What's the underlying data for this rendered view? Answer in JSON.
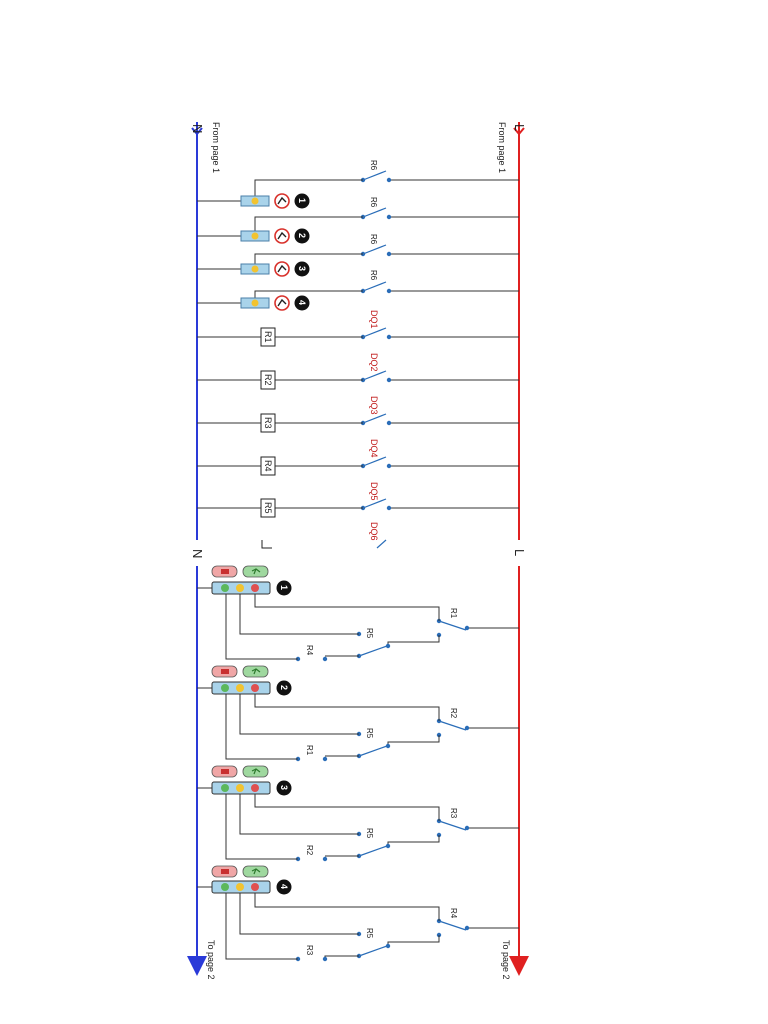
{
  "rails": {
    "l_label": "L",
    "n_label": "N",
    "from_page_l": "From page 1",
    "from_page_n": "From page 1",
    "to_page_l": "To page 2",
    "to_page_n": "To page 2"
  },
  "top_section": {
    "signal_rungs": [
      {
        "switch": "R6",
        "number": "1"
      },
      {
        "switch": "R6",
        "number": "2"
      },
      {
        "switch": "R6",
        "number": "3"
      },
      {
        "switch": "R6",
        "number": "4"
      }
    ],
    "relay_rungs": [
      {
        "switch": "DQ1",
        "coil": "R1"
      },
      {
        "switch": "DQ2",
        "coil": "R2"
      },
      {
        "switch": "DQ3",
        "coil": "R3"
      },
      {
        "switch": "DQ4",
        "coil": "R4"
      },
      {
        "switch": "DQ5",
        "coil": "R5"
      },
      {
        "switch": "DQ6",
        "coil": ""
      }
    ]
  },
  "bottom_section": {
    "groups": [
      {
        "number": "1",
        "main": "R1",
        "sub": "R5",
        "alt": "R4"
      },
      {
        "number": "2",
        "main": "R2",
        "sub": "R5",
        "alt": "R1"
      },
      {
        "number": "3",
        "main": "R3",
        "sub": "R5",
        "alt": "R2"
      },
      {
        "number": "4",
        "main": "R4",
        "sub": "R5",
        "alt": "R3"
      }
    ]
  },
  "colors": {
    "l_rail": "#e02020",
    "n_rail": "#2a3ad8",
    "wire": "#333333",
    "contact_dot": "#2a6db8",
    "dq_label": "#c01818"
  }
}
